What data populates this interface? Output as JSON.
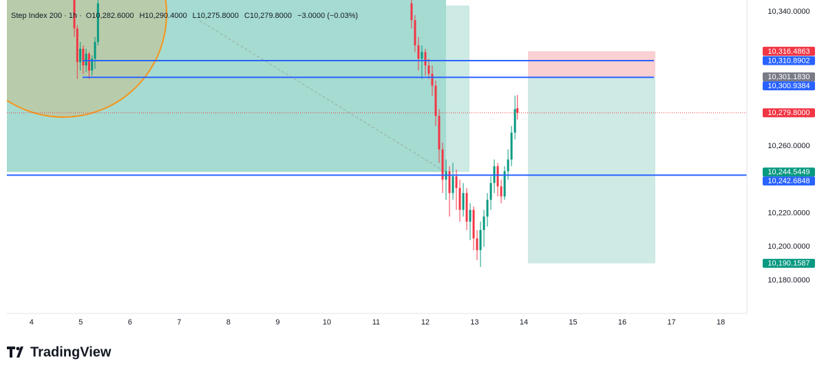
{
  "chart_data": {
    "type": "candlestick",
    "title": "Step Index 200 · 1h ·",
    "ohlc_legend": [
      "O10,282.6000",
      "H10,290.4000",
      "L10,275.8000",
      "C10,279.8000",
      "−3.0000 (−0.03%)"
    ],
    "brand": "TradingView",
    "up_color": "#089981",
    "down_color": "#f23645",
    "xlim": [
      3.5,
      18.53
    ],
    "xticks": [
      4,
      5,
      6,
      7,
      8,
      9,
      10,
      11,
      12,
      13,
      14,
      15,
      16,
      17,
      18
    ],
    "ylim": [
      10160.3,
      10347
    ],
    "yticks": [
      {
        "value": 10340,
        "label": "10,340.0000"
      },
      {
        "value": 10260,
        "label": "10,260.0000"
      },
      {
        "value": 10220,
        "label": "10,220.0000"
      },
      {
        "value": 10200,
        "label": "10,200.0000"
      },
      {
        "value": 10180,
        "label": "10,180.0000"
      }
    ],
    "grid": false,
    "price_labels": [
      {
        "value": 10316.4863,
        "label": "10,316.4863",
        "color": "#f23645"
      },
      {
        "value": 10310.8902,
        "label": "10,310.8902",
        "color": "#2962ff",
        "line": "segment"
      },
      {
        "value": 10301.183,
        "label": "10,301.1830",
        "color": "#787b86"
      },
      {
        "value": 10300.9384,
        "label": "10,300.9384",
        "color": "#2962ff",
        "line": "segment"
      },
      {
        "value": 10279.8,
        "label": "10,279.8000",
        "color": "#f23645"
      },
      {
        "value": 10244.5449,
        "label": "10,244.5449",
        "color": "#089981"
      },
      {
        "value": 10242.6848,
        "label": "10,242.6848",
        "color": "#2962ff",
        "line": "full"
      },
      {
        "value": 10190.1587,
        "label": "10,190.1587",
        "color": "#089981"
      }
    ],
    "x": [
      4.87,
      4.93,
      4.99,
      5.05,
      5.11,
      5.17,
      5.23,
      5.29,
      5.35,
      11.72,
      11.79,
      11.86,
      11.93,
      12.0,
      12.07,
      12.14,
      12.21,
      12.28,
      12.35,
      12.42,
      12.49,
      12.56,
      12.63,
      12.7,
      12.77,
      12.84,
      12.91,
      12.98,
      13.05,
      13.12,
      13.19,
      13.26,
      13.33,
      13.4,
      13.47,
      13.54,
      13.61,
      13.68,
      13.75,
      13.82,
      13.87
    ],
    "open": [
      10347,
      10330,
      10310,
      10318,
      10308,
      10315,
      10305,
      10312,
      10322,
      10345,
      10335,
      10320,
      10312,
      10316,
      10308,
      10303,
      10296,
      10278,
      10258,
      10240,
      10245,
      10232,
      10242,
      10235,
      10222,
      10232,
      10215,
      10222,
      10205,
      10198,
      10210,
      10218,
      10228,
      10238,
      10248,
      10236,
      10230,
      10245,
      10252,
      10268,
      10282.6
    ],
    "high": [
      10350,
      10332,
      10322,
      10320,
      10318,
      10316,
      10314,
      10325,
      10350,
      10348,
      10338,
      10325,
      10320,
      10318,
      10312,
      10308,
      10299,
      10282,
      10262,
      10252,
      10248,
      10250,
      10246,
      10240,
      10238,
      10235,
      10226,
      10224,
      10210,
      10215,
      10222,
      10232,
      10242,
      10252,
      10250,
      10240,
      10248,
      10258,
      10272,
      10290,
      10290.4
    ],
    "low": [
      10325,
      10300,
      10305,
      10303,
      10304,
      10300,
      10302,
      10306,
      10320,
      10330,
      10316,
      10305,
      10300,
      10302,
      10300,
      10290,
      10272,
      10250,
      10232,
      10228,
      10218,
      10228,
      10222,
      10215,
      10218,
      10210,
      10204,
      10198,
      10192,
      10188,
      10200,
      10212,
      10222,
      10232,
      10230,
      10226,
      10228,
      10240,
      10248,
      10264,
      10275.8
    ],
    "close": [
      10330,
      10310,
      10318,
      10308,
      10315,
      10305,
      10312,
      10322,
      10345,
      10335,
      10320,
      10312,
      10316,
      10308,
      10303,
      10296,
      10278,
      10258,
      10240,
      10245,
      10232,
      10242,
      10235,
      10222,
      10232,
      10215,
      10222,
      10205,
      10198,
      10210,
      10218,
      10228,
      10238,
      10248,
      10236,
      10230,
      10245,
      10252,
      10268,
      10282,
      10279.8
    ]
  }
}
